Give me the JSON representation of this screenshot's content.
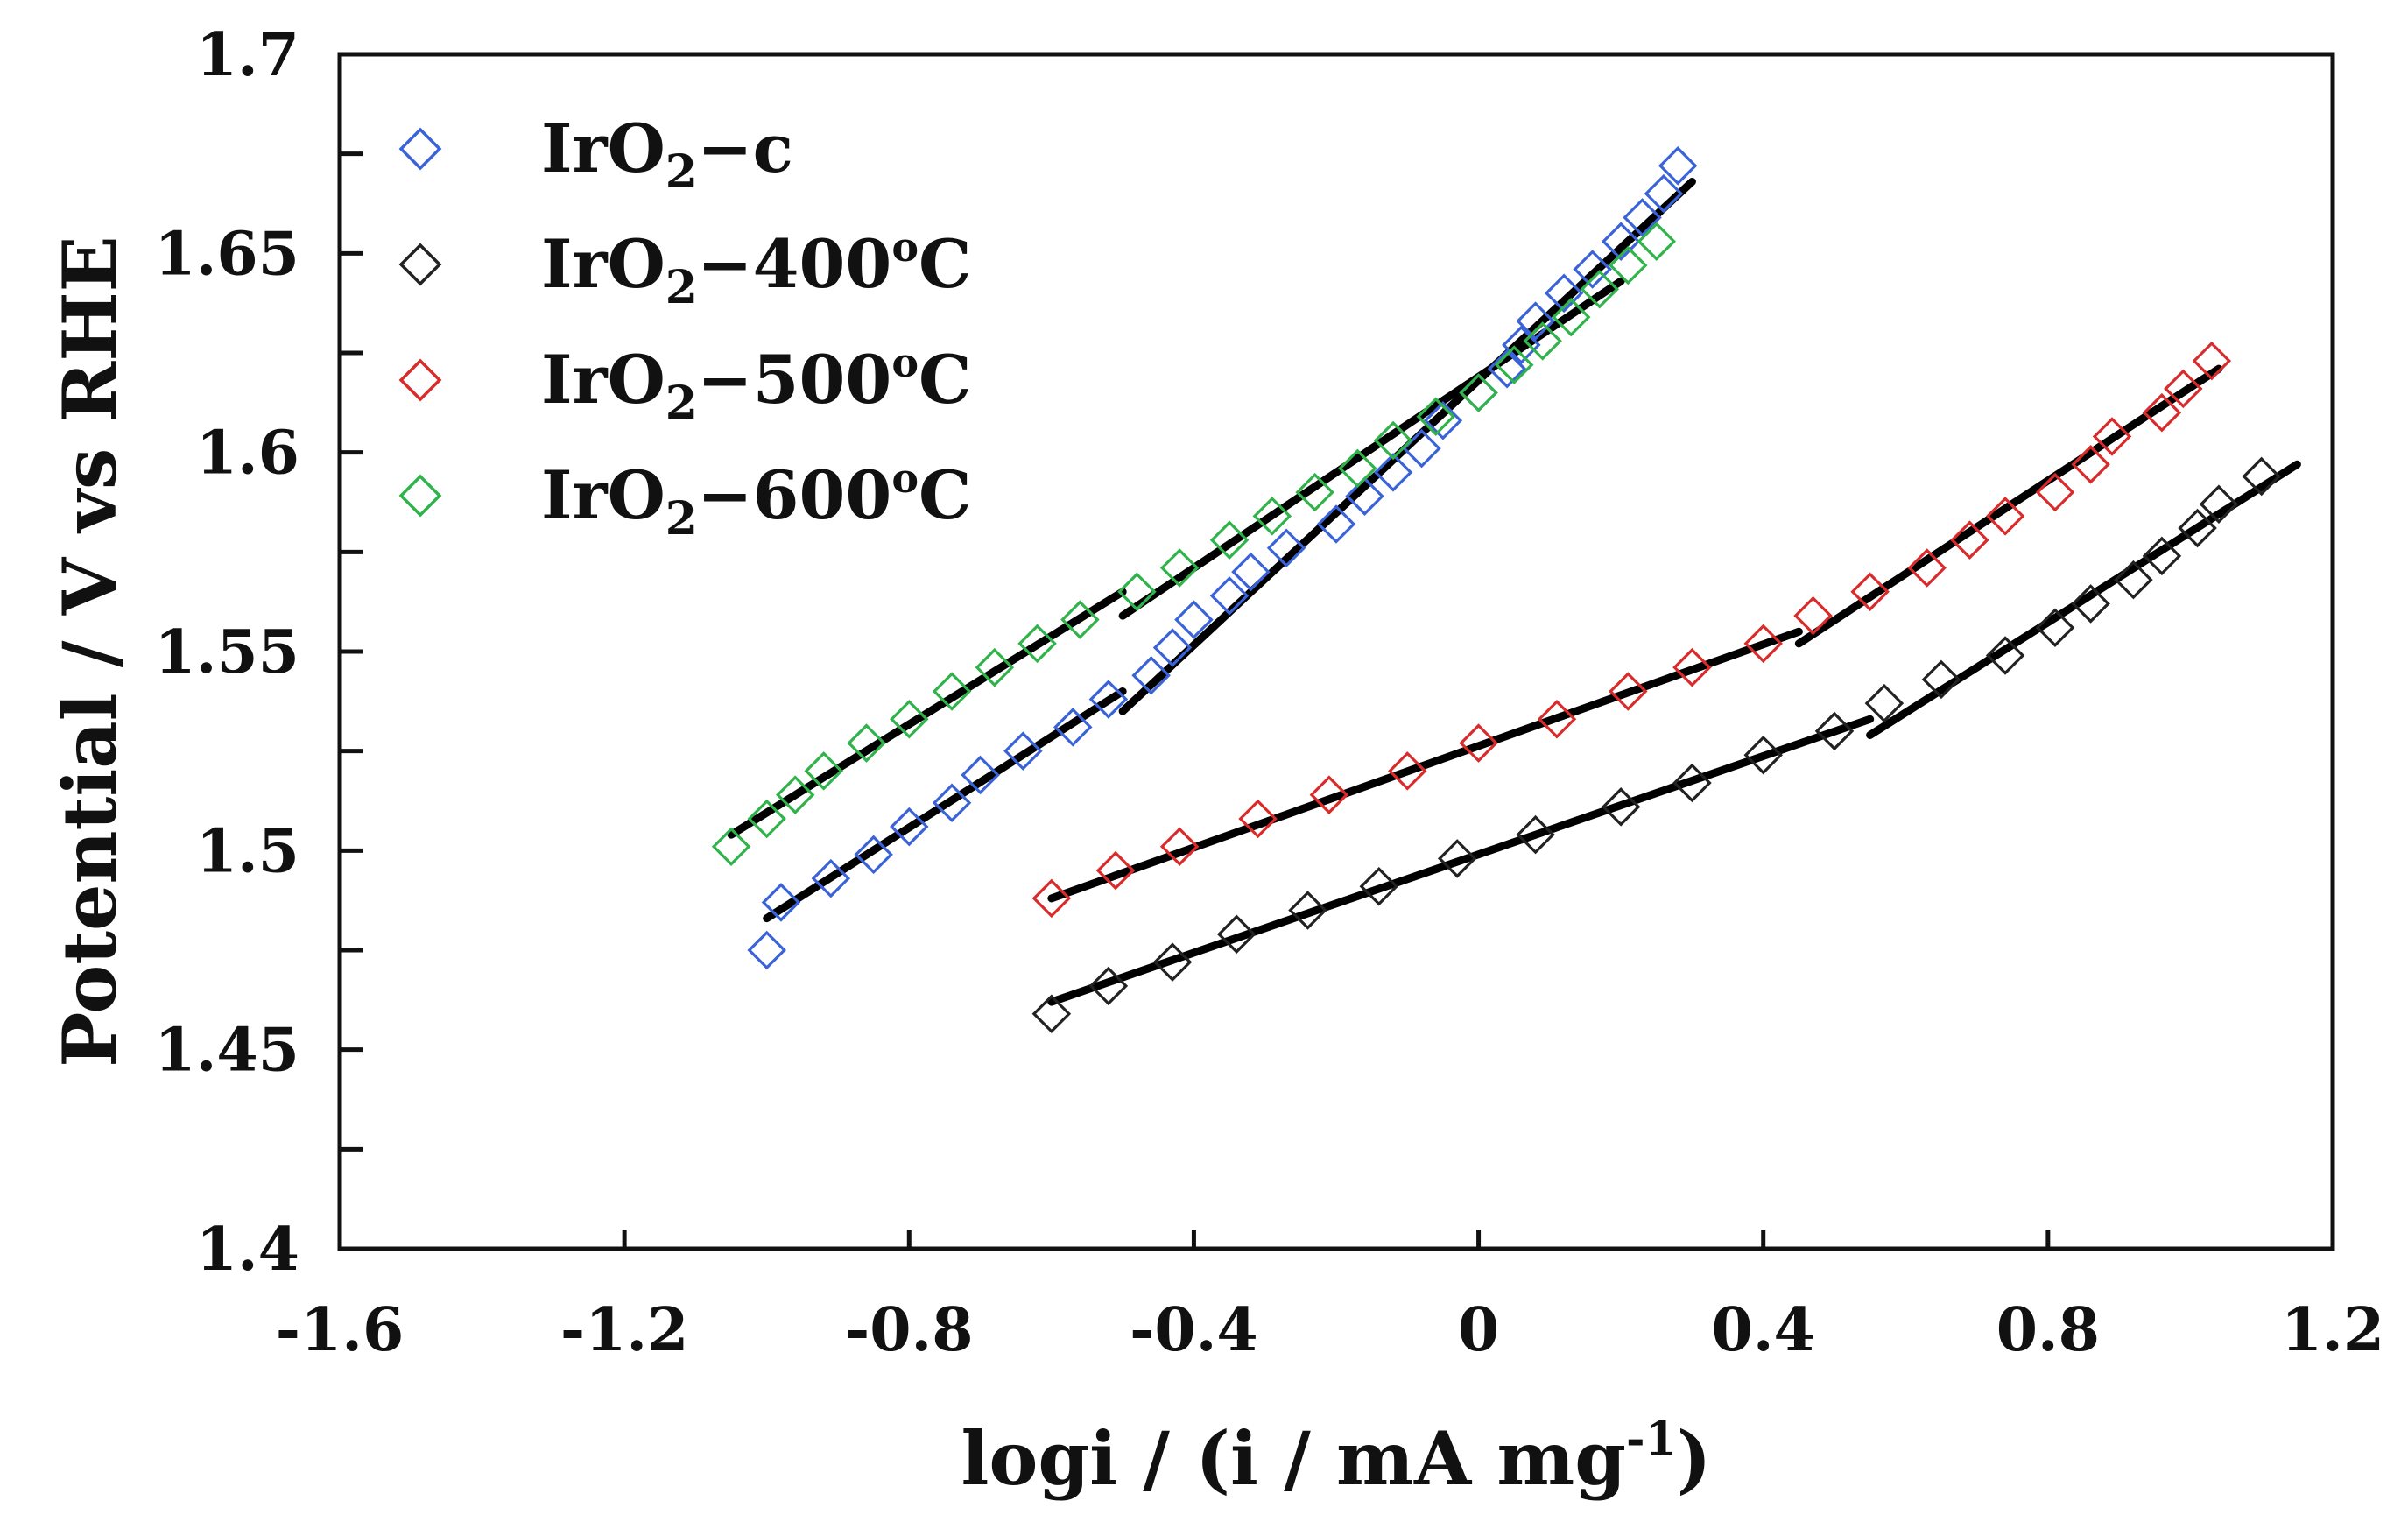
{
  "chart_data": {
    "type": "scatter",
    "title": "",
    "xlabel": "logi / (i / mA mg",
    "xlabel_superscript": "-1",
    "xlabel_suffix": ")",
    "ylabel": "Potential  / V vs RHE",
    "xlim": [
      -1.6,
      1.2
    ],
    "ylim": [
      1.4,
      1.7
    ],
    "x_ticks": [
      -1.6,
      -1.2,
      -0.8,
      -0.4,
      0,
      0.4,
      0.8,
      1.2
    ],
    "x_tick_labels": [
      "-1.6",
      "-1.2",
      "-0.8",
      "-0.4",
      "0",
      "0.4",
      "0.8",
      "1.2"
    ],
    "y_ticks": [
      1.4,
      1.45,
      1.5,
      1.55,
      1.6,
      1.65,
      1.7
    ],
    "y_tick_labels": [
      "1.4",
      "1.45",
      "1.5",
      "1.55",
      "1.6",
      "1.65",
      "1.7"
    ],
    "grid": false,
    "legend_position": "top-left",
    "series": [
      {
        "id": "irc",
        "name": "IrO2-c",
        "label_main": "IrO",
        "label_sub": "2",
        "label_rest": "−c",
        "label_sup": "",
        "label_end": "",
        "color": "#3a63d8",
        "points": [
          [
            -1.0,
            1.475
          ],
          [
            -0.98,
            1.487
          ],
          [
            -0.91,
            1.493
          ],
          [
            -0.85,
            1.499
          ],
          [
            -0.8,
            1.506
          ],
          [
            -0.74,
            1.512
          ],
          [
            -0.7,
            1.519
          ],
          [
            -0.64,
            1.525
          ],
          [
            -0.57,
            1.531
          ],
          [
            -0.52,
            1.538
          ],
          [
            -0.46,
            1.544
          ],
          [
            -0.43,
            1.551
          ],
          [
            -0.4,
            1.558
          ],
          [
            -0.35,
            1.564
          ],
          [
            -0.32,
            1.57
          ],
          [
            -0.27,
            1.576
          ],
          [
            -0.2,
            1.582
          ],
          [
            -0.16,
            1.589
          ],
          [
            -0.12,
            1.595
          ],
          [
            -0.08,
            1.601
          ],
          [
            -0.05,
            1.608
          ],
          [
            0.0,
            1.615
          ],
          [
            0.04,
            1.621
          ],
          [
            0.06,
            1.627
          ],
          [
            0.08,
            1.633
          ],
          [
            0.12,
            1.64
          ],
          [
            0.16,
            1.646
          ],
          [
            0.2,
            1.653
          ],
          [
            0.23,
            1.659
          ],
          [
            0.26,
            1.665
          ],
          [
            0.28,
            1.672
          ]
        ]
      },
      {
        "id": "ir400",
        "name": "IrO2-400oC",
        "label_main": "IrO",
        "label_sub": "2",
        "label_rest": "−400",
        "label_sup": "o",
        "label_end": "C",
        "color": "#222222",
        "points": [
          [
            -0.6,
            1.459
          ],
          [
            -0.52,
            1.466
          ],
          [
            -0.43,
            1.472
          ],
          [
            -0.34,
            1.479
          ],
          [
            -0.24,
            1.485
          ],
          [
            -0.14,
            1.491
          ],
          [
            -0.03,
            1.498
          ],
          [
            0.08,
            1.504
          ],
          [
            0.2,
            1.511
          ],
          [
            0.3,
            1.517
          ],
          [
            0.4,
            1.524
          ],
          [
            0.5,
            1.53
          ],
          [
            0.57,
            1.537
          ],
          [
            0.65,
            1.543
          ],
          [
            0.74,
            1.549
          ],
          [
            0.81,
            1.556
          ],
          [
            0.86,
            1.562
          ],
          [
            0.92,
            1.568
          ],
          [
            0.96,
            1.574
          ],
          [
            1.01,
            1.581
          ],
          [
            1.04,
            1.587
          ],
          [
            1.1,
            1.594
          ]
        ]
      },
      {
        "id": "ir500",
        "name": "IrO2-500oC",
        "label_main": "IrO",
        "label_sub": "2",
        "label_rest": "−500",
        "label_sup": "o",
        "label_end": "C",
        "color": "#d92b2b",
        "points": [
          [
            -0.6,
            1.488
          ],
          [
            -0.51,
            1.495
          ],
          [
            -0.42,
            1.501
          ],
          [
            -0.31,
            1.508
          ],
          [
            -0.21,
            1.514
          ],
          [
            -0.1,
            1.52
          ],
          [
            0.0,
            1.527
          ],
          [
            0.11,
            1.533
          ],
          [
            0.21,
            1.54
          ],
          [
            0.3,
            1.546
          ],
          [
            0.4,
            1.552
          ],
          [
            0.47,
            1.559
          ],
          [
            0.55,
            1.565
          ],
          [
            0.63,
            1.571
          ],
          [
            0.69,
            1.578
          ],
          [
            0.74,
            1.584
          ],
          [
            0.81,
            1.59
          ],
          [
            0.86,
            1.597
          ],
          [
            0.89,
            1.604
          ],
          [
            0.96,
            1.61
          ],
          [
            0.99,
            1.616
          ],
          [
            1.03,
            1.623
          ]
        ]
      },
      {
        "id": "ir600",
        "name": "IrO2-600oC",
        "label_main": "IrO",
        "label_sub": "2",
        "label_rest": "−600",
        "label_sup": "o",
        "label_end": "C",
        "color": "#2fb34a",
        "points": [
          [
            -1.05,
            1.501
          ],
          [
            -1.0,
            1.508
          ],
          [
            -0.96,
            1.514
          ],
          [
            -0.92,
            1.52
          ],
          [
            -0.86,
            1.527
          ],
          [
            -0.8,
            1.533
          ],
          [
            -0.74,
            1.54
          ],
          [
            -0.68,
            1.546
          ],
          [
            -0.62,
            1.552
          ],
          [
            -0.56,
            1.558
          ],
          [
            -0.48,
            1.565
          ],
          [
            -0.42,
            1.571
          ],
          [
            -0.35,
            1.578
          ],
          [
            -0.29,
            1.584
          ],
          [
            -0.23,
            1.59
          ],
          [
            -0.17,
            1.596
          ],
          [
            -0.12,
            1.603
          ],
          [
            -0.06,
            1.609
          ],
          [
            0.0,
            1.615
          ],
          [
            0.05,
            1.622
          ],
          [
            0.09,
            1.628
          ],
          [
            0.13,
            1.634
          ],
          [
            0.17,
            1.641
          ],
          [
            0.21,
            1.647
          ],
          [
            0.25,
            1.653
          ]
        ]
      }
    ],
    "fit_lines": [
      {
        "series": "ir600",
        "x": [
          -1.05,
          -0.5
        ],
        "y": [
          1.504,
          1.565
        ]
      },
      {
        "series": "ir600",
        "x": [
          -0.5,
          0.2
        ],
        "y": [
          1.559,
          1.643
        ]
      },
      {
        "series": "irc",
        "x": [
          -1.0,
          -0.5
        ],
        "y": [
          1.483,
          1.54
        ]
      },
      {
        "series": "irc",
        "x": [
          -0.5,
          0.3
        ],
        "y": [
          1.535,
          1.668
        ]
      },
      {
        "series": "ir500",
        "x": [
          -0.6,
          0.45
        ],
        "y": [
          1.488,
          1.555
        ]
      },
      {
        "series": "ir500",
        "x": [
          0.45,
          1.04
        ],
        "y": [
          1.552,
          1.621
        ]
      },
      {
        "series": "ir400",
        "x": [
          -0.6,
          0.55
        ],
        "y": [
          1.462,
          1.533
        ]
      },
      {
        "series": "ir400",
        "x": [
          0.55,
          1.15
        ],
        "y": [
          1.529,
          1.597
        ]
      }
    ]
  }
}
